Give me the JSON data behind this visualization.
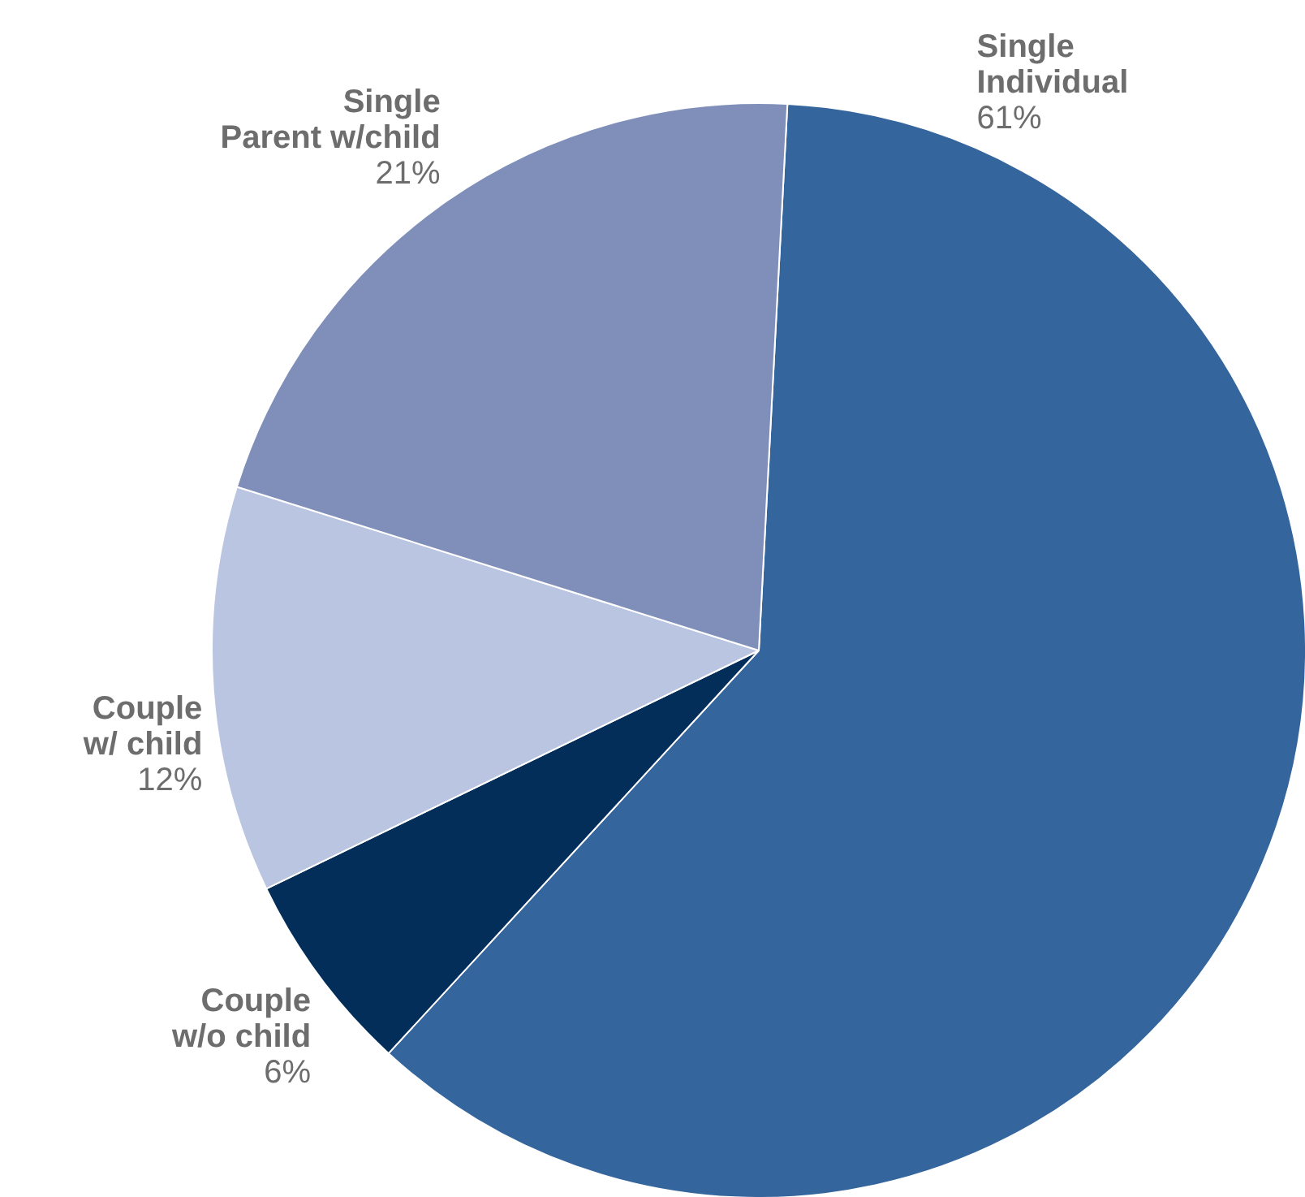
{
  "chart_data": {
    "type": "pie",
    "categories": [
      "Single\nIndividual",
      "Couple\nw/o child",
      "Couple\nw/ child",
      "Single\nParent w/child"
    ],
    "values": [
      61,
      6,
      12,
      21
    ],
    "colors": [
      "#34659c",
      "#032e5a",
      "#bac5e1",
      "#7f8fb9"
    ],
    "value_labels": [
      "61%",
      "6%",
      "12%",
      "21%"
    ],
    "legend": false
  }
}
